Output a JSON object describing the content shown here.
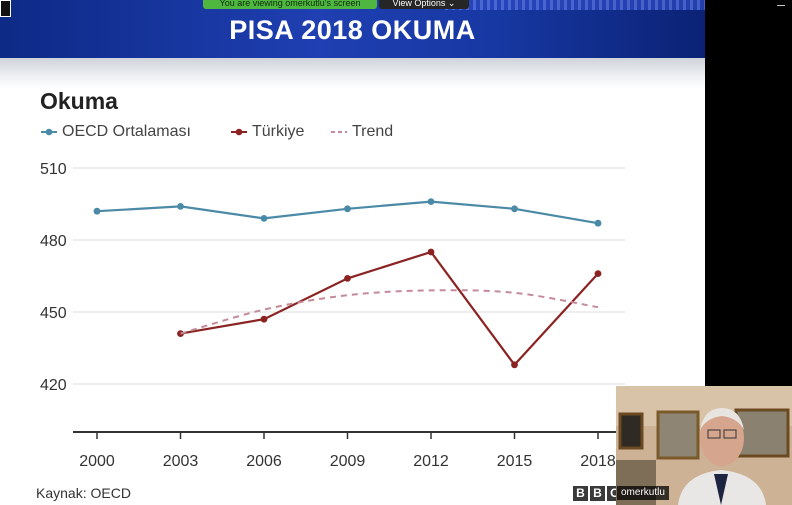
{
  "screen_share": {
    "share_notice": "You are viewing omerkutlu's screen",
    "view_options": "View Options"
  },
  "slide": {
    "title": "PISA 2018 OKUMA"
  },
  "legend": {
    "oecd": "OECD Ortalaması",
    "turkiye": "Türkiye",
    "trend": "Trend"
  },
  "source": "Kaynak: OECD",
  "bbc_logo": [
    "B",
    "B",
    "C"
  ],
  "webcam": {
    "participant_name": "omerkutlu"
  },
  "colors": {
    "oecd": "#4a8aa6",
    "turkiye": "#8b2323",
    "trend": "#c58a9a",
    "banner": "#1a37a8"
  },
  "chart_data": {
    "type": "line",
    "title": "Okuma",
    "x": [
      "2000",
      "2003",
      "2006",
      "2009",
      "2012",
      "2015",
      "2018"
    ],
    "y_ticks": [
      420,
      450,
      480,
      510
    ],
    "ylim": [
      403,
      515
    ],
    "grid": true,
    "legend_position": "top-left",
    "series": [
      {
        "name": "OECD Ortalaması",
        "values": [
          492,
          494,
          489,
          493,
          496,
          493,
          487
        ],
        "style": "line-markers"
      },
      {
        "name": "Türkiye",
        "values": [
          null,
          441,
          447,
          464,
          475,
          428,
          466
        ],
        "style": "line-markers"
      },
      {
        "name": "Trend",
        "values": [
          null,
          441,
          451,
          457,
          459,
          458,
          452
        ],
        "style": "dashed-curve"
      }
    ]
  }
}
